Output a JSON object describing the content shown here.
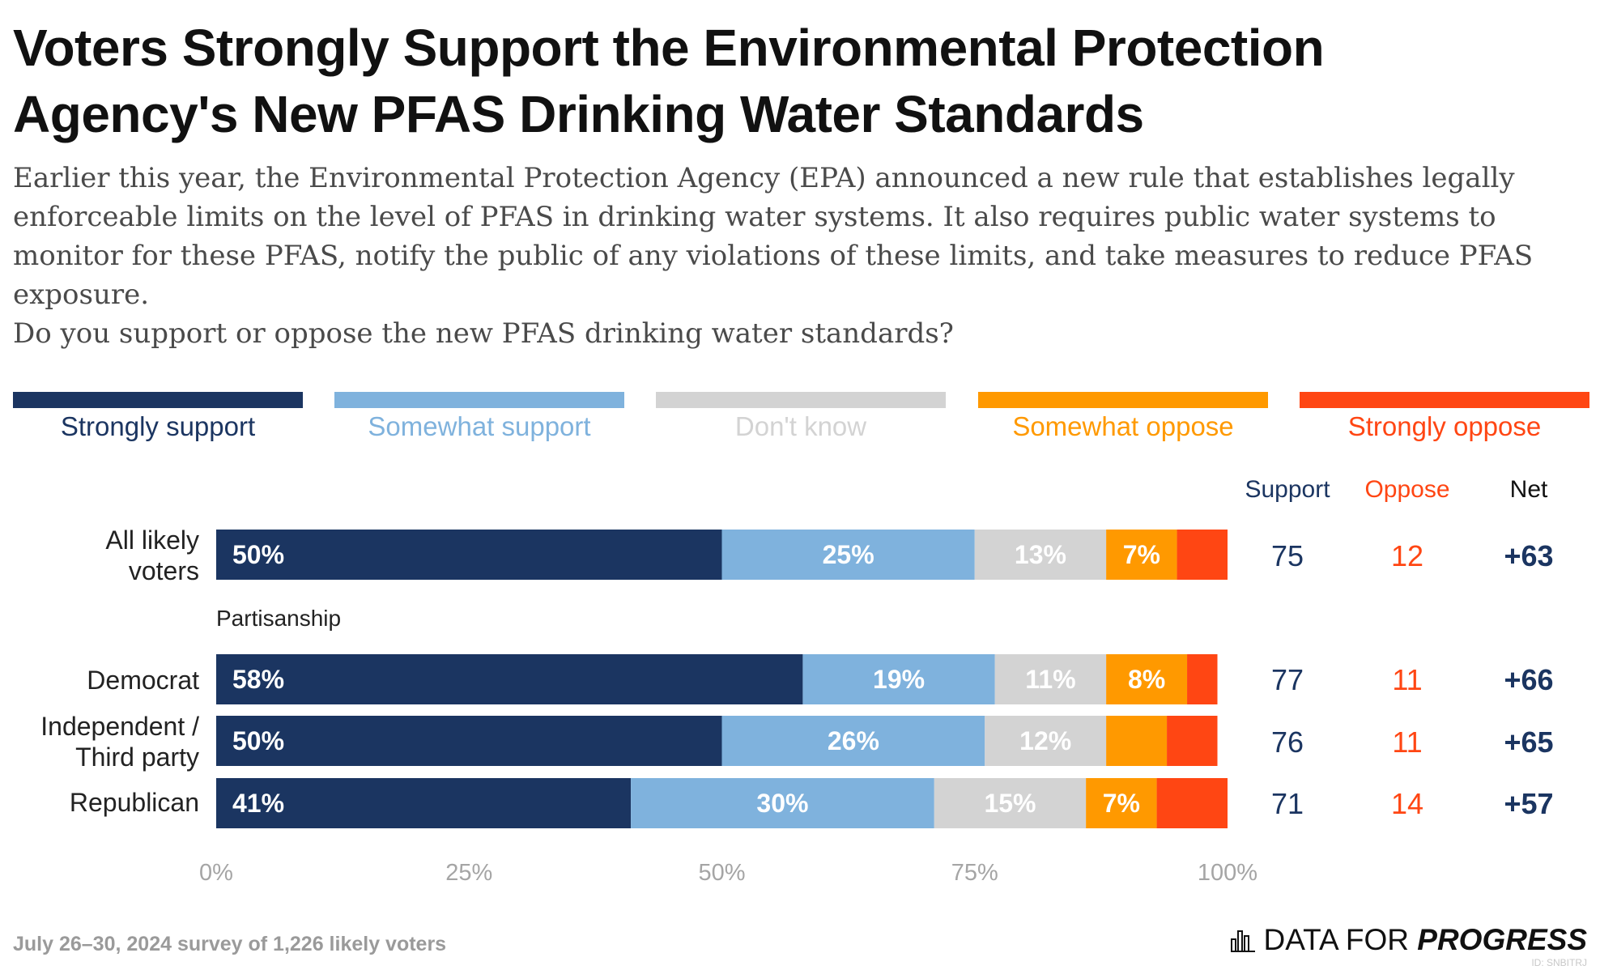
{
  "title": "Voters Strongly Support the Environmental Protection Agency's New PFAS Drinking Water Standards",
  "subtitle": "Earlier this year, the Environmental Protection Agency (EPA) announced a new rule that establishes legally enforceable limits on the level of PFAS in drinking water systems. It also requires public water systems to monitor for these PFAS, notify the public of any violations of these limits, and take measures to reduce PFAS exposure.",
  "question": "Do you support or oppose the new PFAS drinking water standards?",
  "colors": {
    "strongly_support": "#1b3561",
    "somewhat_support": "#7fb2dd",
    "dont_know": "#d3d3d3",
    "somewhat_oppose": "#ff9900",
    "strongly_oppose": "#ff4613"
  },
  "legend": [
    {
      "label": "Strongly support",
      "color": "#1b3561",
      "text_color": "#1b3561"
    },
    {
      "label": "Somewhat support",
      "color": "#7fb2dd",
      "text_color": "#7fb2dd"
    },
    {
      "label": "Don't know",
      "color": "#d3d3d3",
      "text_color": "#d3d3d3"
    },
    {
      "label": "Somewhat oppose",
      "color": "#ff9900",
      "text_color": "#ff9900"
    },
    {
      "label": "Strongly oppose",
      "color": "#ff4613",
      "text_color": "#ff4613"
    }
  ],
  "summary_headers": {
    "support": "Support",
    "oppose": "Oppose",
    "net": "Net"
  },
  "section_label": "Partisanship",
  "chart_data": {
    "type": "bar",
    "orientation": "horizontal",
    "stacked": true,
    "categories": [
      "All likely voters",
      "Democrat",
      "Independent / Third party",
      "Republican"
    ],
    "series": [
      {
        "name": "Strongly support",
        "values": [
          50,
          58,
          50,
          41
        ],
        "labels": [
          "50%",
          "58%",
          "50%",
          "41%"
        ]
      },
      {
        "name": "Somewhat support",
        "values": [
          25,
          19,
          26,
          30
        ],
        "labels": [
          "25%",
          "19%",
          "26%",
          "30%"
        ]
      },
      {
        "name": "Don't know",
        "values": [
          13,
          11,
          12,
          15
        ],
        "labels": [
          "13%",
          "11%",
          "12%",
          "15%"
        ]
      },
      {
        "name": "Somewhat oppose",
        "values": [
          7,
          8,
          6,
          7
        ],
        "labels": [
          "7%",
          "8%",
          "",
          "7%"
        ]
      },
      {
        "name": "Strongly oppose",
        "values": [
          5,
          3,
          5,
          7
        ],
        "labels": [
          "",
          "",
          "",
          ""
        ]
      }
    ],
    "summary": [
      {
        "support": "75",
        "oppose": "12",
        "net": "+63"
      },
      {
        "support": "77",
        "oppose": "11",
        "net": "+66"
      },
      {
        "support": "76",
        "oppose": "11",
        "net": "+65"
      },
      {
        "support": "71",
        "oppose": "14",
        "net": "+57"
      }
    ],
    "xlim": [
      0,
      100
    ],
    "xticks": [
      "0%",
      "25%",
      "50%",
      "75%",
      "100%"
    ],
    "legend_position": "top"
  },
  "footer": "July 26–30, 2024 survey of 1,226 likely voters",
  "logo": {
    "icon": "bar-chart-icon",
    "text_regular": "DATA FOR",
    "text_bold": "PROGRESS"
  },
  "logo_id": "ID: SNBITRJ"
}
